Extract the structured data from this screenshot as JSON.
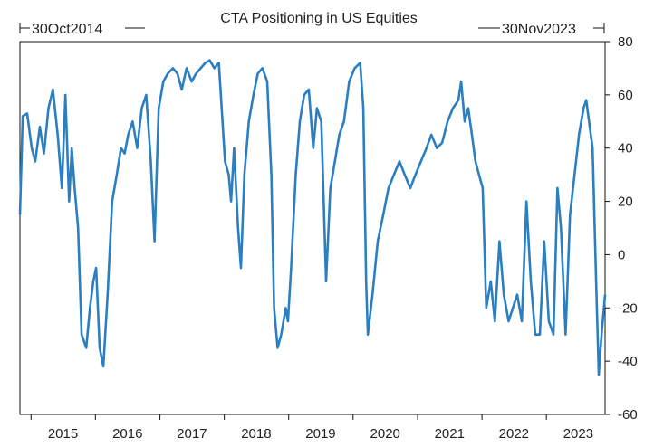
{
  "chart_data": {
    "type": "line",
    "title": "CTA Positioning in US Equities",
    "start_label": "30Oct2014",
    "end_label": "30Nov2023",
    "xlabel": "",
    "ylabel": "",
    "ylim": [
      -60,
      80
    ],
    "xlim": [
      "2014-10-30",
      "2023-11-30"
    ],
    "yticks": [
      "80",
      "60",
      "40",
      "20",
      "0",
      "-20",
      "-40",
      "-60"
    ],
    "xticks": [
      "2015",
      "2016",
      "2017",
      "2018",
      "2019",
      "2020",
      "2021",
      "2022",
      "2023"
    ],
    "grid": false,
    "legend": "none",
    "series_color": "#2b7fc1",
    "series": [
      {
        "x": [
          "2014-10-30",
          "2014-11-15",
          "2014-12-10",
          "2015-01-05",
          "2015-01-25",
          "2015-02-20",
          "2015-03-15",
          "2015-04-10",
          "2015-05-05",
          "2015-06-01",
          "2015-06-25",
          "2015-07-15",
          "2015-08-05",
          "2015-08-20",
          "2015-09-05",
          "2015-09-25",
          "2015-10-15",
          "2015-11-10",
          "2015-12-01",
          "2015-12-20",
          "2016-01-05",
          "2016-01-25",
          "2016-02-15",
          "2016-03-10",
          "2016-04-05",
          "2016-05-01",
          "2016-05-25",
          "2016-06-15",
          "2016-07-05",
          "2016-07-30",
          "2016-08-25",
          "2016-09-20",
          "2016-10-15",
          "2016-11-10",
          "2016-12-01",
          "2016-12-25",
          "2017-01-20",
          "2017-02-15",
          "2017-03-15",
          "2017-04-10",
          "2017-05-05",
          "2017-06-01",
          "2017-06-30",
          "2017-07-25",
          "2017-08-20",
          "2017-09-15",
          "2017-10-10",
          "2017-11-05",
          "2017-12-01",
          "2018-01-05",
          "2018-01-26",
          "2018-02-08",
          "2018-02-25",
          "2018-03-20",
          "2018-04-05",
          "2018-04-25",
          "2018-05-20",
          "2018-06-15",
          "2018-07-10",
          "2018-08-05",
          "2018-09-01",
          "2018-09-25",
          "2018-10-10",
          "2018-10-30",
          "2018-11-20",
          "2018-12-15",
          "2018-12-28",
          "2019-01-15",
          "2019-02-10",
          "2019-03-05",
          "2019-03-30",
          "2019-04-25",
          "2019-05-20",
          "2019-06-10",
          "2019-07-05",
          "2019-08-01",
          "2019-08-25",
          "2019-09-20",
          "2019-10-15",
          "2019-11-10",
          "2019-12-10",
          "2020-01-10",
          "2020-02-10",
          "2020-02-28",
          "2020-03-15",
          "2020-03-25",
          "2020-04-20",
          "2020-05-20",
          "2020-06-20",
          "2020-07-20",
          "2020-08-20",
          "2020-09-20",
          "2020-10-20",
          "2020-11-20",
          "2020-12-20",
          "2021-01-20",
          "2021-02-20",
          "2021-03-20",
          "2021-04-20",
          "2021-05-20",
          "2021-06-20",
          "2021-07-20",
          "2021-08-20",
          "2021-09-05",
          "2021-09-25",
          "2021-10-15",
          "2021-11-05",
          "2021-11-25",
          "2021-12-15",
          "2022-01-05",
          "2022-01-25",
          "2022-02-20",
          "2022-03-15",
          "2022-04-10",
          "2022-05-05",
          "2022-06-01",
          "2022-06-25",
          "2022-07-20",
          "2022-08-15",
          "2022-09-10",
          "2022-10-05",
          "2022-10-30",
          "2022-11-25",
          "2022-12-20",
          "2023-01-15",
          "2023-02-10",
          "2023-03-05",
          "2023-03-25",
          "2023-04-20",
          "2023-05-15",
          "2023-06-10",
          "2023-07-05",
          "2023-07-31",
          "2023-08-15",
          "2023-08-31",
          "2023-09-20",
          "2023-10-10",
          "2023-10-25",
          "2023-11-10",
          "2023-11-30"
        ],
        "values": [
          15,
          52,
          53,
          40,
          35,
          48,
          38,
          55,
          62,
          45,
          25,
          60,
          20,
          40,
          25,
          10,
          -30,
          -35,
          -20,
          -10,
          -5,
          -35,
          -42,
          -15,
          20,
          30,
          40,
          38,
          45,
          50,
          40,
          55,
          60,
          35,
          5,
          55,
          65,
          68,
          70,
          68,
          62,
          70,
          65,
          68,
          70,
          72,
          73,
          70,
          72,
          35,
          30,
          20,
          40,
          10,
          -5,
          30,
          50,
          60,
          68,
          70,
          65,
          30,
          -20,
          -35,
          -30,
          -20,
          -25,
          -5,
          30,
          50,
          60,
          62,
          40,
          55,
          50,
          -10,
          25,
          35,
          45,
          50,
          65,
          70,
          72,
          55,
          -10,
          -30,
          -15,
          5,
          15,
          25,
          30,
          35,
          30,
          25,
          30,
          35,
          40,
          45,
          40,
          42,
          50,
          55,
          58,
          65,
          50,
          55,
          45,
          35,
          30,
          25,
          -20,
          -10,
          -25,
          5,
          -15,
          -25,
          -20,
          -15,
          -25,
          20,
          -10,
          -30,
          -30,
          5,
          -25,
          -30,
          25,
          10,
          -30,
          15,
          30,
          45,
          55,
          58,
          50,
          40,
          -10,
          -45,
          -30,
          -15
        ]
      }
    ]
  }
}
